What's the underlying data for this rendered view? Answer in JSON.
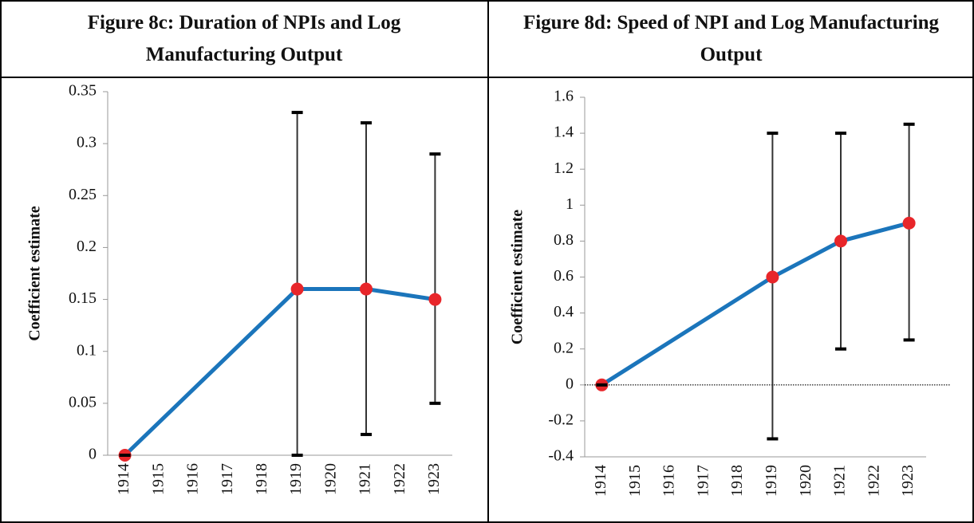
{
  "chart_data": [
    {
      "type": "line",
      "title": "Figure 8c: Duration of NPIs and Log Manufacturing Output",
      "y_label": "Coefficient estimate",
      "x": [
        1914,
        1919,
        1921,
        1923
      ],
      "values": [
        0,
        0.16,
        0.16,
        0.15
      ],
      "lower": [
        0,
        0,
        0.02,
        0.05
      ],
      "upper": [
        0,
        0.33,
        0.32,
        0.29
      ],
      "color": "#1b75bb",
      "marker_color": "#e8262a",
      "error_color": "#333333",
      "xlim": [
        1913.5,
        1923.5
      ],
      "xticks": [
        1914,
        1915,
        1916,
        1917,
        1918,
        1919,
        1920,
        1921,
        1922,
        1923
      ],
      "ylim": [
        0,
        0.35
      ],
      "yticks": [
        0,
        0.05,
        0.1,
        0.15,
        0.2,
        0.25,
        0.3,
        0.35
      ],
      "zero_line": false
    },
    {
      "type": "line",
      "title": "Figure 8d: Speed of NPI and Log Manufacturing Output",
      "y_label": "Coefficient estimate",
      "x": [
        1914,
        1919,
        1921,
        1923
      ],
      "values": [
        0,
        0.6,
        0.8,
        0.9
      ],
      "lower": [
        0,
        -0.3,
        0.2,
        0.25
      ],
      "upper": [
        0,
        1.4,
        1.4,
        1.45
      ],
      "color": "#1b75bb",
      "marker_color": "#e8262a",
      "error_color": "#333333",
      "xlim": [
        1913.5,
        1923.5
      ],
      "xticks": [
        1914,
        1915,
        1916,
        1917,
        1918,
        1919,
        1920,
        1921,
        1922,
        1923
      ],
      "ylim": [
        -0.4,
        1.6
      ],
      "yticks": [
        -0.4,
        -0.2,
        0,
        0.2,
        0.4,
        0.6,
        0.8,
        1,
        1.2,
        1.4,
        1.6
      ],
      "zero_line": true
    }
  ]
}
